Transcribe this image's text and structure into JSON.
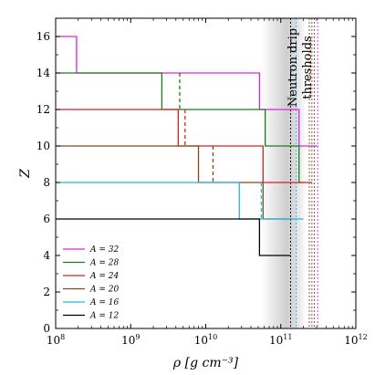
{
  "chart_data": {
    "type": "line",
    "xlabel": "ρ [g cm⁻³]",
    "ylabel": "Z",
    "xscale": "log",
    "xlim": [
      100000000.0,
      1000000000000.0
    ],
    "ylim": [
      0,
      17
    ],
    "xticks": [
      {
        "value": 100000000.0,
        "base": "10",
        "exp": "8"
      },
      {
        "value": 1000000000.0,
        "base": "10",
        "exp": "9"
      },
      {
        "value": 10000000000.0,
        "base": "10",
        "exp": "10"
      },
      {
        "value": 100000000000.0,
        "base": "10",
        "exp": "11"
      },
      {
        "value": 1000000000000.0,
        "base": "10",
        "exp": "12"
      }
    ],
    "yticks": [
      0,
      2,
      4,
      6,
      8,
      10,
      12,
      14,
      16
    ],
    "grid": false,
    "legend_position": "lower-left",
    "annotation": {
      "lines": [
        "Neutron drip",
        "thresholds"
      ],
      "band_x": [
        55000000000.0,
        220000000000.0
      ]
    },
    "series": [
      {
        "name": "A = 32",
        "color": "#e020e0",
        "steps": [
          [
            100000000.0,
            16
          ],
          [
            190000000.0,
            16
          ],
          [
            190000000.0,
            14
          ],
          [
            52000000000.0,
            14
          ],
          [
            52000000000.0,
            12
          ],
          [
            175000000000.0,
            12
          ],
          [
            175000000000.0,
            10
          ],
          [
            310000000000.0,
            10
          ]
        ],
        "dashed": [],
        "drip_x": 310000000000.0
      },
      {
        "name": "A = 28",
        "color": "#1c7c1c",
        "steps": [
          [
            100000000.0,
            14
          ],
          [
            2600000000.0,
            14
          ],
          [
            2600000000.0,
            12
          ],
          [
            62000000000.0,
            12
          ],
          [
            62000000000.0,
            10
          ],
          [
            175000000000.0,
            10
          ],
          [
            175000000000.0,
            8
          ],
          [
            200000000000.0,
            8
          ]
        ],
        "dashed": [
          [
            4500000000.0,
            14,
            4500000000.0,
            12
          ]
        ],
        "drip_x": 280000000000.0
      },
      {
        "name": "A = 24",
        "color": "#d82020",
        "steps": [
          [
            100000000.0,
            12
          ],
          [
            4300000000.0,
            12
          ],
          [
            4300000000.0,
            10
          ],
          [
            58000000000.0,
            10
          ],
          [
            58000000000.0,
            8
          ],
          [
            260000000000.0,
            8
          ]
        ],
        "dashed": [
          [
            5300000000.0,
            12,
            5300000000.0,
            10
          ]
        ],
        "drip_x": 260000000000.0
      },
      {
        "name": "A = 20",
        "color": "#8b4513",
        "steps": [
          [
            100000000.0,
            10
          ],
          [
            8000000000.0,
            10
          ],
          [
            8000000000.0,
            8
          ],
          [
            58000000000.0,
            8
          ],
          [
            58000000000.0,
            6
          ],
          [
            145000000000.0,
            6
          ]
        ],
        "dashed": [
          [
            12500000000.0,
            10,
            12500000000.0,
            8
          ]
        ],
        "drip_x": 240000000000.0
      },
      {
        "name": "A = 16",
        "color": "#22b8e0",
        "steps": [
          [
            100000000.0,
            8
          ],
          [
            28000000000.0,
            8
          ],
          [
            28000000000.0,
            6
          ],
          [
            200000000000.0,
            6
          ]
        ],
        "dashed": [
          [
            55000000000.0,
            8,
            55000000000.0,
            6
          ]
        ],
        "drip_x": 160000000000.0
      },
      {
        "name": "A = 12",
        "color": "#000000",
        "steps": [
          [
            100000000.0,
            6
          ],
          [
            52000000000.0,
            6
          ],
          [
            52000000000.0,
            4
          ],
          [
            135000000000.0,
            4
          ]
        ],
        "dashed": [],
        "drip_x": 135000000000.0
      }
    ]
  }
}
